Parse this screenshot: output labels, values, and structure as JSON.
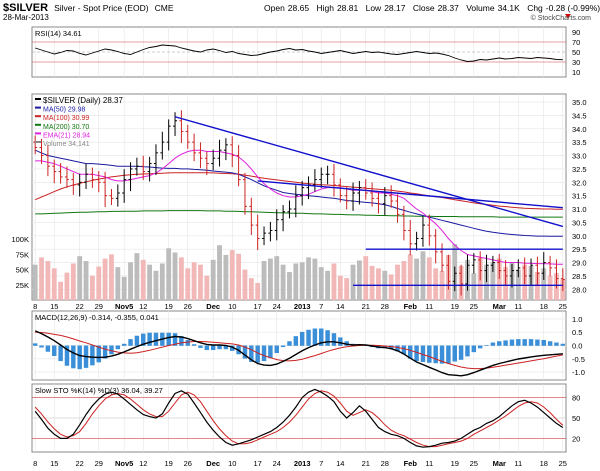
{
  "header": {
    "symbol": "$SILVER",
    "name": "Silver - Spot Price (EOD)",
    "exchange": "CME",
    "date": "28-Mar-2013",
    "open_label": "Open",
    "open": "28.65",
    "high_label": "High",
    "high": "28.81",
    "low_label": "Low",
    "low": "28.17",
    "close_label": "Close",
    "close": "28.37",
    "volume_label": "Volume",
    "volume": "34.1K",
    "chg_label": "Chg",
    "chg": "-0.28 (-0.99%)",
    "watermark": "© StockCharts.com"
  },
  "colors": {
    "price": "#000000",
    "ma50": "#1a1aa0",
    "ma100": "#cc2222",
    "ma200": "#117711",
    "ema21": "#e01fe0",
    "trend": "#1010cc",
    "vol_up": "#bcbcbc",
    "vol_down": "#f2b8b8",
    "macd": "#000000",
    "signal": "#cc2222",
    "hist": "#3a8fd8",
    "stoch_k": "#000000",
    "stoch_d": "#cc2222",
    "grid": "#cccccc",
    "frame": "#888888",
    "chg": "#cc0000"
  },
  "chart_data": [
    {
      "type": "line",
      "panel": "rsi",
      "label": "RSI(14) 34.61",
      "y_ticks": [
        10,
        30,
        50,
        70,
        90
      ],
      "ylim": [
        0,
        100
      ],
      "series": [
        {
          "name": "RSI(14)",
          "values": [
            58,
            54,
            50,
            46,
            49,
            53,
            52,
            47,
            44,
            48,
            52,
            56,
            54,
            51,
            47,
            45,
            50,
            55,
            59,
            61,
            64,
            63,
            62,
            58,
            55,
            52,
            50,
            54,
            56,
            53,
            49,
            51,
            47,
            45,
            43,
            44,
            47,
            50,
            52,
            55,
            57,
            54,
            55,
            52,
            50,
            47,
            49,
            51,
            53,
            50,
            47,
            49,
            51,
            49,
            50,
            48,
            46,
            45,
            47,
            49,
            51,
            49,
            47,
            48,
            46,
            43,
            38,
            34,
            31,
            32,
            35,
            34,
            36,
            38,
            36,
            37,
            39,
            38,
            37,
            39,
            38,
            37,
            35,
            34.61
          ]
        }
      ]
    },
    {
      "type": "candlestick",
      "panel": "price",
      "title": "$SILVER (Daily) 28.37",
      "ylim": [
        27.6,
        35.3
      ],
      "y_ticks": [
        "35.0",
        "34.5",
        "34.0",
        "33.5",
        "33.0",
        "32.5",
        "32.0",
        "31.5",
        "31.0",
        "30.5",
        "30.0",
        "29.5",
        "29.0",
        "28.5",
        "28.0"
      ],
      "volume_ticks": [
        "100K",
        "75K",
        "50K",
        "25K"
      ],
      "legend": [
        {
          "label": "$SILVER (Daily) 28.37",
          "color": "#000000"
        },
        {
          "label": "MA(50) 29.98",
          "color": "#1a1aa0"
        },
        {
          "label": "MA(100) 30.99",
          "color": "#cc2222"
        },
        {
          "label": "MA(200) 30.70",
          "color": "#117711"
        },
        {
          "label": "EMA(21) 28.94",
          "color": "#e01fe0"
        },
        {
          "label": "Volume 34,141",
          "color": "#888888"
        }
      ],
      "x_ticks": [
        "8",
        "15",
        "22",
        "29",
        "Nov5",
        "12",
        "19",
        "26",
        "Dec",
        "10",
        "17",
        "24",
        "2013",
        "7",
        "14",
        "21",
        "28",
        "Feb",
        "11",
        "19",
        "25",
        "Mar",
        "11",
        "18",
        "25"
      ],
      "close": [
        33.3,
        33.0,
        32.6,
        32.4,
        32.2,
        32.1,
        31.9,
        32.0,
        32.3,
        32.1,
        32.0,
        31.5,
        31.4,
        31.6,
        32.1,
        32.5,
        32.6,
        32.4,
        32.7,
        33.1,
        33.5,
        34.1,
        34.3,
        33.9,
        33.5,
        33.1,
        32.9,
        32.7,
        32.9,
        33.2,
        33.4,
        33.0,
        32.1,
        31.1,
        30.4,
        29.9,
        30.1,
        30.2,
        30.6,
        30.9,
        31.0,
        31.5,
        31.8,
        31.9,
        32.1,
        32.3,
        32.3,
        31.9,
        31.5,
        31.3,
        31.6,
        31.8,
        31.6,
        31.4,
        31.2,
        31.5,
        31.3,
        30.8,
        30.2,
        29.7,
        29.9,
        30.4,
        30.0,
        29.4,
        28.9,
        28.3,
        28.6,
        28.2,
        28.9,
        29.1,
        28.7,
        28.9,
        29.0,
        28.7,
        28.5,
        28.7,
        28.8,
        28.5,
        28.9,
        28.6,
        29.0,
        28.8,
        28.4,
        28.37
      ],
      "ma50": [
        33.2,
        33.1,
        33.0,
        32.95,
        32.9,
        32.85,
        32.8,
        32.75,
        32.7,
        32.7,
        32.68,
        32.66,
        32.63,
        32.6,
        32.6,
        32.6,
        32.6,
        32.58,
        32.57,
        32.55,
        32.53,
        32.52,
        32.52,
        32.5,
        32.5,
        32.48,
        32.47,
        32.45,
        32.42,
        32.4,
        32.38,
        32.35,
        32.3,
        32.2,
        32.1,
        31.98,
        31.87,
        31.78,
        31.7,
        31.62,
        31.58,
        31.55,
        31.53,
        31.5,
        31.48,
        31.45,
        31.42,
        31.4,
        31.36,
        31.32,
        31.3,
        31.27,
        31.25,
        31.23,
        31.2,
        31.16,
        31.1,
        31.02,
        30.95,
        30.88,
        30.82,
        30.76,
        30.7,
        30.64,
        30.58,
        30.52,
        30.46,
        30.4,
        30.34,
        30.28,
        30.22,
        30.17,
        30.13,
        30.1,
        30.07,
        30.05,
        30.03,
        30.01,
        30.0,
        29.99,
        29.99,
        29.98,
        29.98,
        29.98
      ],
      "ma100": [
        31.35,
        31.45,
        31.55,
        31.65,
        31.75,
        31.83,
        31.9,
        31.96,
        32.02,
        32.07,
        32.12,
        32.16,
        32.2,
        32.23,
        32.26,
        32.28,
        32.3,
        32.31,
        32.32,
        32.33,
        32.34,
        32.35,
        32.36,
        32.36,
        32.36,
        32.36,
        32.36,
        32.36,
        32.35,
        32.34,
        32.33,
        32.32,
        32.3,
        32.27,
        32.23,
        32.19,
        32.15,
        32.12,
        32.09,
        32.06,
        32.03,
        32.0,
        31.97,
        31.95,
        31.93,
        31.91,
        31.9,
        31.88,
        31.86,
        31.84,
        31.82,
        31.8,
        31.78,
        31.76,
        31.74,
        31.72,
        31.7,
        31.67,
        31.64,
        31.6,
        31.57,
        31.53,
        31.5,
        31.46,
        31.43,
        31.39,
        31.35,
        31.31,
        31.27,
        31.23,
        31.2,
        31.17,
        31.14,
        31.11,
        31.09,
        31.07,
        31.05,
        31.03,
        31.02,
        31.01,
        31.0,
        31.0,
        30.99,
        30.99
      ],
      "ma200": [
        30.82,
        30.82,
        30.83,
        30.84,
        30.85,
        30.86,
        30.87,
        30.88,
        30.88,
        30.89,
        30.9,
        30.9,
        30.91,
        30.91,
        30.92,
        30.92,
        30.92,
        30.93,
        30.93,
        30.93,
        30.93,
        30.94,
        30.94,
        30.94,
        30.94,
        30.94,
        30.94,
        30.93,
        30.93,
        30.93,
        30.92,
        30.92,
        30.91,
        30.9,
        30.9,
        30.89,
        30.88,
        30.87,
        30.86,
        30.86,
        30.85,
        30.84,
        30.84,
        30.83,
        30.82,
        30.82,
        30.81,
        30.8,
        30.8,
        30.79,
        30.78,
        30.78,
        30.77,
        30.77,
        30.76,
        30.76,
        30.75,
        30.75,
        30.74,
        30.74,
        30.73,
        30.73,
        30.73,
        30.72,
        30.72,
        30.72,
        30.72,
        30.71,
        30.71,
        30.71,
        30.71,
        30.71,
        30.71,
        30.7,
        30.7,
        30.7,
        30.7,
        30.7,
        30.7,
        30.7,
        30.7,
        30.7,
        30.7,
        30.7
      ],
      "ema21": [
        32.8,
        32.8,
        32.75,
        32.7,
        32.6,
        32.5,
        32.4,
        32.3,
        32.3,
        32.3,
        32.25,
        32.2,
        32.1,
        32.05,
        32.05,
        32.1,
        32.15,
        32.2,
        32.25,
        32.35,
        32.5,
        32.7,
        32.9,
        33.05,
        33.15,
        33.2,
        33.2,
        33.15,
        33.15,
        33.15,
        33.1,
        33.05,
        32.95,
        32.75,
        32.5,
        32.2,
        31.95,
        31.75,
        31.6,
        31.5,
        31.45,
        31.45,
        31.5,
        31.55,
        31.65,
        31.75,
        31.8,
        31.8,
        31.8,
        31.75,
        31.7,
        31.7,
        31.7,
        31.65,
        31.6,
        31.6,
        31.55,
        31.5,
        31.4,
        31.2,
        31.0,
        30.85,
        30.65,
        30.45,
        30.2,
        29.9,
        29.65,
        29.45,
        29.3,
        29.25,
        29.2,
        29.15,
        29.1,
        29.05,
        29.0,
        29.0,
        29.0,
        28.97,
        28.97,
        28.96,
        28.96,
        28.95,
        28.94,
        28.94
      ],
      "volume": [
        58,
        70,
        64,
        52,
        30,
        45,
        60,
        72,
        64,
        40,
        55,
        68,
        75,
        54,
        38,
        62,
        77,
        66,
        58,
        48,
        60,
        85,
        78,
        70,
        52,
        62,
        58,
        40,
        66,
        90,
        74,
        82,
        76,
        50,
        36,
        28,
        64,
        68,
        72,
        58,
        46,
        60,
        62,
        70,
        68,
        54,
        48,
        60,
        40,
        36,
        58,
        65,
        72,
        56,
        52,
        48,
        42,
        58,
        64,
        75,
        68,
        80,
        70,
        52,
        48,
        74,
        92,
        56,
        66,
        44,
        70,
        58,
        62,
        68,
        54,
        62,
        50,
        58,
        56,
        46,
        52,
        40,
        44,
        34
      ]
    },
    {
      "type": "line",
      "panel": "macd",
      "label": "MACD(12,26,9) -0.314, -0.355, 0.041",
      "y_ticks": [
        "1.0",
        "0.5",
        "0.0",
        "-0.5",
        "-1.0"
      ],
      "ylim": [
        -1.3,
        1.3
      ],
      "series": [
        {
          "name": "MACD",
          "values": [
            0.55,
            0.45,
            0.32,
            0.18,
            0.02,
            -0.15,
            -0.28,
            -0.38,
            -0.42,
            -0.44,
            -0.45,
            -0.44,
            -0.4,
            -0.33,
            -0.24,
            -0.14,
            -0.04,
            0.05,
            0.12,
            0.18,
            0.24,
            0.3,
            0.34,
            0.32,
            0.26,
            0.18,
            0.1,
            0.04,
            0.02,
            0.02,
            0.0,
            -0.06,
            -0.18,
            -0.36,
            -0.54,
            -0.68,
            -0.74,
            -0.75,
            -0.7,
            -0.6,
            -0.48,
            -0.34,
            -0.2,
            -0.08,
            0.02,
            0.1,
            0.14,
            0.14,
            0.1,
            0.05,
            0.02,
            0.03,
            0.02,
            -0.02,
            -0.06,
            -0.08,
            -0.12,
            -0.2,
            -0.32,
            -0.48,
            -0.62,
            -0.72,
            -0.82,
            -0.92,
            -1.02,
            -1.1,
            -1.12,
            -1.14,
            -1.1,
            -1.02,
            -0.93,
            -0.84,
            -0.75,
            -0.68,
            -0.62,
            -0.56,
            -0.51,
            -0.47,
            -0.43,
            -0.4,
            -0.37,
            -0.35,
            -0.33,
            -0.314
          ]
        },
        {
          "name": "Signal",
          "values": [
            0.5,
            0.49,
            0.46,
            0.42,
            0.38,
            0.32,
            0.25,
            0.17,
            0.1,
            0.02,
            -0.06,
            -0.14,
            -0.2,
            -0.25,
            -0.28,
            -0.29,
            -0.27,
            -0.23,
            -0.18,
            -0.12,
            -0.06,
            0.0,
            0.05,
            0.1,
            0.13,
            0.15,
            0.15,
            0.14,
            0.12,
            0.1,
            0.08,
            0.06,
            0.02,
            -0.06,
            -0.16,
            -0.28,
            -0.38,
            -0.46,
            -0.53,
            -0.57,
            -0.58,
            -0.56,
            -0.52,
            -0.45,
            -0.38,
            -0.3,
            -0.22,
            -0.15,
            -0.09,
            -0.05,
            -0.02,
            0.0,
            0.01,
            0.01,
            0.0,
            -0.02,
            -0.04,
            -0.07,
            -0.12,
            -0.18,
            -0.26,
            -0.34,
            -0.42,
            -0.51,
            -0.6,
            -0.68,
            -0.75,
            -0.81,
            -0.85,
            -0.87,
            -0.87,
            -0.85,
            -0.82,
            -0.78,
            -0.74,
            -0.7,
            -0.66,
            -0.62,
            -0.58,
            -0.54,
            -0.5,
            -0.45,
            -0.4,
            -0.355
          ]
        }
      ]
    },
    {
      "type": "line",
      "panel": "stoch",
      "label": "Slow STO %K(14) %D(3) 36.04, 39.27",
      "y_ticks": [
        "80",
        "50",
        "20"
      ],
      "ylim": [
        0,
        100
      ],
      "series": [
        {
          "name": "%K(14)",
          "values": [
            60,
            48,
            35,
            26,
            20,
            20,
            26,
            40,
            55,
            68,
            78,
            85,
            88,
            85,
            78,
            70,
            62,
            55,
            52,
            50,
            56,
            72,
            86,
            90,
            85,
            72,
            58,
            44,
            32,
            22,
            14,
            10,
            12,
            15,
            18,
            22,
            26,
            30,
            36,
            44,
            54,
            66,
            80,
            88,
            92,
            88,
            82,
            74,
            60,
            50,
            58,
            68,
            60,
            48,
            36,
            30,
            26,
            24,
            20,
            14,
            9,
            7,
            8,
            10,
            13,
            14,
            16,
            20,
            26,
            32,
            36,
            42,
            46,
            52,
            60,
            68,
            74,
            76,
            72,
            66,
            58,
            50,
            42,
            36.04
          ]
        },
        {
          "name": "%D(3)",
          "values": [
            66,
            56,
            44,
            34,
            26,
            22,
            24,
            30,
            42,
            56,
            68,
            78,
            84,
            86,
            84,
            78,
            70,
            62,
            56,
            52,
            52,
            60,
            72,
            84,
            88,
            84,
            74,
            60,
            46,
            34,
            24,
            16,
            12,
            12,
            14,
            18,
            22,
            26,
            30,
            36,
            44,
            54,
            66,
            78,
            86,
            90,
            88,
            82,
            72,
            60,
            54,
            58,
            62,
            58,
            50,
            40,
            32,
            27,
            24,
            19,
            14,
            10,
            8,
            8,
            10,
            12,
            14,
            16,
            20,
            26,
            31,
            36,
            41,
            47,
            53,
            60,
            67,
            72,
            74,
            72,
            66,
            58,
            48,
            39.27
          ]
        }
      ]
    }
  ]
}
